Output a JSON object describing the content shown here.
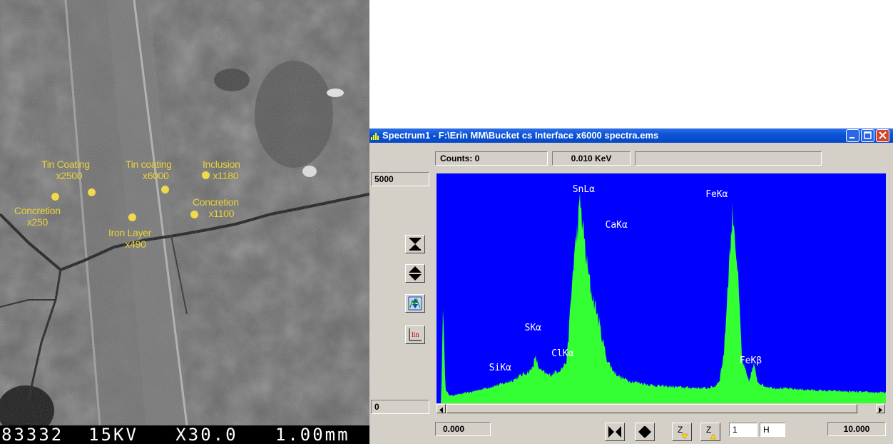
{
  "sem": {
    "scale_bar_text": "83332  15KV   X30.0   1.00mm",
    "labels": [
      {
        "name": "tin-coating-x2500",
        "line1": "Tin Coating",
        "line2": "x2500"
      },
      {
        "name": "tin-coating-x6000",
        "line1": "Tin coating",
        "line2": "x6000"
      },
      {
        "name": "inclusion-x1180",
        "line1": "Inclusion",
        "line2": "x1180"
      },
      {
        "name": "concretion-x1100",
        "line1": "Concretion",
        "line2": "x1100"
      },
      {
        "name": "concretion-x250",
        "line1": "Concretion",
        "line2": "x250"
      },
      {
        "name": "iron-layer-x490",
        "line1": "Iron Layer",
        "line2": "x490"
      }
    ],
    "marker_color": "#f1d94a"
  },
  "window": {
    "title": "Spectrum1 - F:\\Erin MM\\Bucket cs Interface x6000 spectra.ems",
    "counts_label": "Counts: 0",
    "energy_label": "0.010 KeV",
    "y_max_label": "5000",
    "y_min_label": "0",
    "x_min_label": "0.000",
    "x_max_label": "10.000",
    "zoom_value": "1",
    "mode_value": "H",
    "lin_label": "lin",
    "z_label": "Z",
    "colors": {
      "plot_bg": "#0000ff",
      "spectrum": "#33ff33",
      "peak_label": "#ffffff"
    }
  },
  "chart_data": {
    "type": "area",
    "xlabel": "",
    "ylabel": "",
    "xlim": [
      0,
      10
    ],
    "ylim": [
      0,
      5000
    ],
    "x_unit": "KeV",
    "series": [
      {
        "x": [
          0.0,
          0.1,
          0.15,
          0.2,
          0.3,
          0.5,
          0.8,
          1.0,
          1.2,
          1.5,
          1.74,
          1.9,
          2.1,
          2.2,
          2.3,
          2.5,
          2.6,
          2.8,
          2.9,
          3.05,
          3.2,
          3.35,
          3.44,
          3.55,
          3.69,
          3.8,
          3.95,
          4.1,
          4.3,
          4.5,
          4.8,
          5.0,
          5.5,
          6.0,
          6.2,
          6.3,
          6.4,
          6.5,
          6.6,
          6.7,
          6.8,
          6.95,
          7.06,
          7.15,
          7.3,
          7.5,
          8.0,
          8.5,
          9.0,
          9.5,
          10.0
        ],
        "values": [
          0,
          0,
          2350,
          300,
          180,
          210,
          270,
          330,
          380,
          460,
          560,
          660,
          760,
          1050,
          770,
          650,
          700,
          820,
          1000,
          3280,
          4650,
          3200,
          2600,
          2200,
          1500,
          1000,
          730,
          600,
          520,
          480,
          420,
          400,
          370,
          350,
          390,
          550,
          1200,
          3100,
          4500,
          3100,
          1000,
          500,
          900,
          500,
          400,
          360,
          330,
          300,
          280,
          260,
          250
        ]
      }
    ],
    "peak_labels": [
      {
        "label": "SiKα",
        "energy": 1.74
      },
      {
        "label": "SKα",
        "energy": 2.31
      },
      {
        "label": "ClKα",
        "energy": 2.62
      },
      {
        "label": "SnLα",
        "energy": 3.44
      },
      {
        "label": "CaKα",
        "energy": 3.69
      },
      {
        "label": "FeKα",
        "energy": 6.4
      },
      {
        "label": "FeKβ",
        "energy": 7.06
      }
    ]
  }
}
